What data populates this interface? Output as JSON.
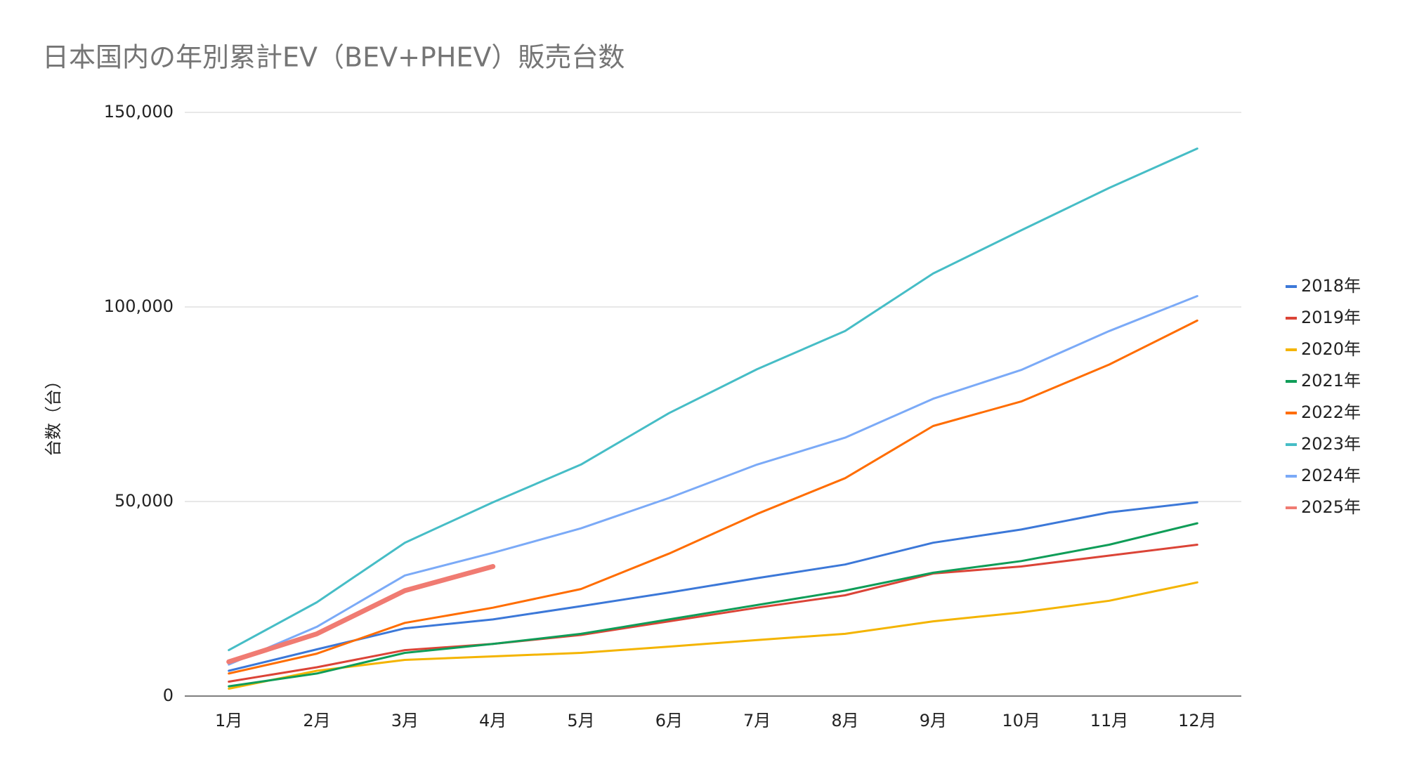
{
  "chart_data": {
    "type": "line",
    "title": "日本国内の年別累計EV（BEV+PHEV）販売台数",
    "y_label": "台数（台）",
    "categories": [
      "1月",
      "2月",
      "3月",
      "4月",
      "5月",
      "6月",
      "7月",
      "8月",
      "9月",
      "10月",
      "11月",
      "12月"
    ],
    "series": [
      {
        "name": "2018年",
        "color": "#3c78d8",
        "values": [
          6500,
          12000,
          17400,
          19700,
          23100,
          26600,
          30300,
          33800,
          39400,
          42800,
          47200,
          49800
        ]
      },
      {
        "name": "2019年",
        "color": "#db4437",
        "values": [
          3700,
          7400,
          11800,
          13400,
          15700,
          19200,
          22700,
          25900,
          31500,
          33300,
          36100,
          38900
        ]
      },
      {
        "name": "2020年",
        "color": "#f4b400",
        "values": [
          1900,
          6500,
          9300,
          10200,
          11100,
          12700,
          14400,
          16000,
          19200,
          21500,
          24500,
          29200
        ]
      },
      {
        "name": "2021年",
        "color": "#0f9d58",
        "values": [
          2500,
          5800,
          11100,
          13400,
          16000,
          19700,
          23400,
          27100,
          31700,
          34700,
          38900,
          44400
        ]
      },
      {
        "name": "2022年",
        "color": "#ff6d01",
        "values": [
          5800,
          10900,
          18800,
          22700,
          27500,
          36600,
          46800,
          56000,
          69400,
          75700,
          85200,
          96500
        ]
      },
      {
        "name": "2023年",
        "color": "#46bdc6",
        "values": [
          11800,
          24100,
          39400,
          49800,
          59500,
          72700,
          84000,
          93800,
          108600,
          119700,
          130600,
          140700
        ]
      },
      {
        "name": "2024年",
        "color": "#7baaf7",
        "values": [
          8100,
          17800,
          31000,
          36800,
          43100,
          50900,
          59500,
          66400,
          76400,
          83800,
          93800,
          102800
        ]
      },
      {
        "name": "2025年",
        "color": "#f07b72",
        "values": [
          8800,
          16000,
          27100,
          33300,
          null,
          null,
          null,
          null,
          null,
          null,
          null,
          null
        ]
      }
    ],
    "ylim": [
      0,
      150000
    ],
    "yticks": [
      0,
      {
        "value": 50000,
        "label": "50,000"
      },
      {
        "value": 100000,
        "label": "100,000"
      },
      {
        "value": 150000,
        "label": "150,000"
      }
    ],
    "grid": true,
    "legend": "right"
  }
}
